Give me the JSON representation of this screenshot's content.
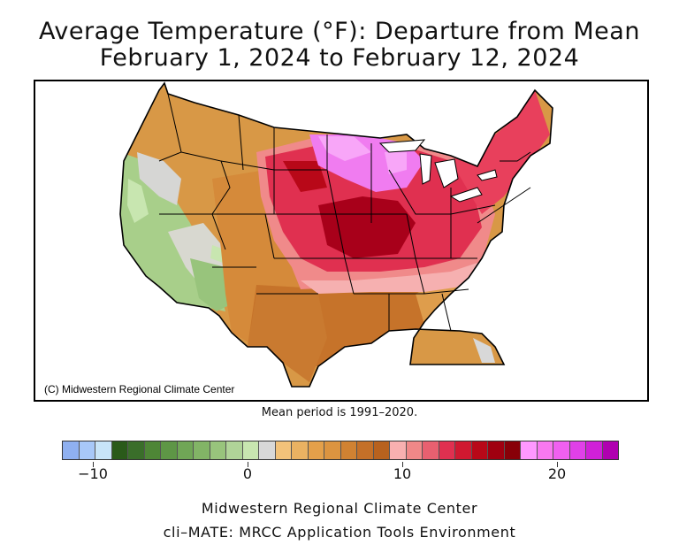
{
  "title_line1": "Average Temperature (°F): Departure from Mean",
  "title_line2": "February 1, 2024 to February 12, 2024",
  "copyright": "(C) Midwestern Regional Climate Center",
  "mean_period": "Mean period is 1991–2020.",
  "footer_line1": "Midwestern Regional Climate Center",
  "footer_line2": "cli–MATE: MRCC Application Tools Environment",
  "colorbar": {
    "range": [
      -12,
      24
    ],
    "tick_labels": [
      "−10",
      "0",
      "10",
      "20"
    ],
    "tick_values": [
      -10,
      0,
      10,
      20
    ],
    "colors": [
      "#8fb0f0",
      "#a8c8f8",
      "#c8e4f8",
      "#2a5a1a",
      "#3a6e2a",
      "#4e8636",
      "#5e9646",
      "#70a656",
      "#82b466",
      "#98c47c",
      "#b0d498",
      "#c8e6b0",
      "#d8d8d8",
      "#f2c27a",
      "#eab262",
      "#e4a04a",
      "#dc9440",
      "#d08232",
      "#c47028",
      "#b8621e",
      "#f8b0b0",
      "#f08888",
      "#e86070",
      "#e03050",
      "#d01830",
      "#b80818",
      "#a00010",
      "#880008",
      "#ff98ff",
      "#f878f0",
      "#f060f0",
      "#e040e8",
      "#d020d8",
      "#b000b0"
    ]
  },
  "legend_colors": {
    "cold_green": "#98c47c",
    "neutral": "#d8d8d8",
    "orange": "#e4a04a",
    "dark_orange": "#c47028",
    "pink": "#f08888",
    "red": "#e03050",
    "dark_red": "#a00010",
    "magenta": "#f060f0"
  }
}
